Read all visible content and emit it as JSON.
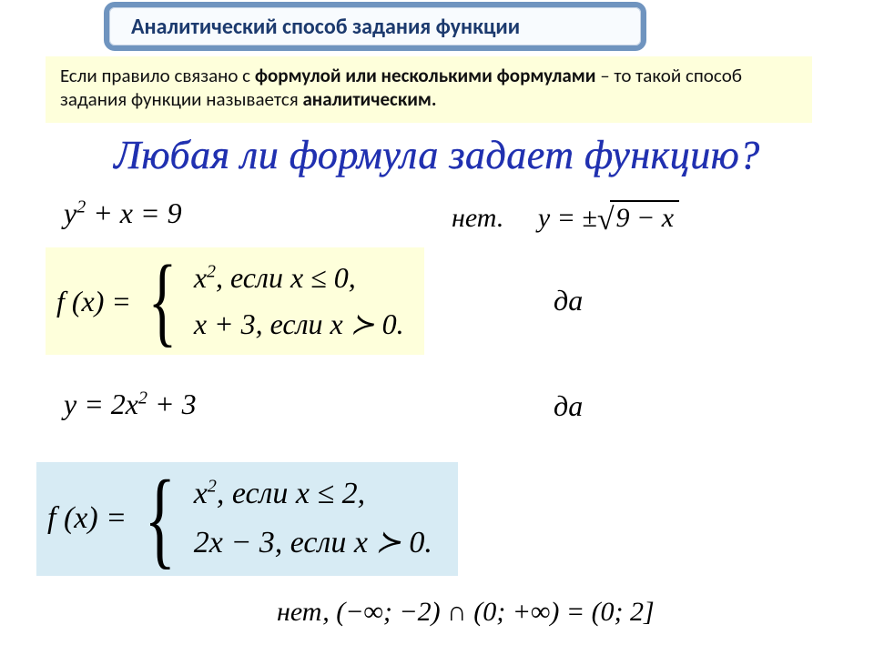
{
  "title": "Аналитический способ задания функции",
  "definition": {
    "pre": "Если правило связано с ",
    "bold1": "формулой или несколькими формулами",
    "mid": " – то такой способ задания функции называется ",
    "bold2": "аналитическим."
  },
  "question": "Любая ли формула задает функцию?",
  "eq1": {
    "lhs_y": "y",
    "exp": "2",
    "plus_x": " + x = 9"
  },
  "ans1": {
    "no": "нет.",
    "y_eq": "y = ±",
    "rad": "9 − x"
  },
  "piece1": {
    "fx": "f (x) = ",
    "line1_a": "x",
    "line1_exp": "2",
    "line1_b": ", если  x ≤ 0,",
    "line2": "x + 3, если  x ≻ 0."
  },
  "da": "да",
  "eq3": {
    "text_a": "y = 2x",
    "exp": "2",
    "text_b": " + 3"
  },
  "piece2": {
    "fx": "f (x) = ",
    "line1_a": "x",
    "line1_exp": "2",
    "line1_b": ",   если    x ≤ 2,",
    "line2": "2x − 3, если  x ≻ 0."
  },
  "ans_bottom": "нет,  (−∞; −2) ∩ (0; +∞) = (0; 2]",
  "colors": {
    "title_border": "#6f94bf",
    "title_text": "#1c3a6e",
    "yellow_box": "#feffdb",
    "blue_box": "#d7ebf4",
    "question_color": "#2030b0"
  }
}
